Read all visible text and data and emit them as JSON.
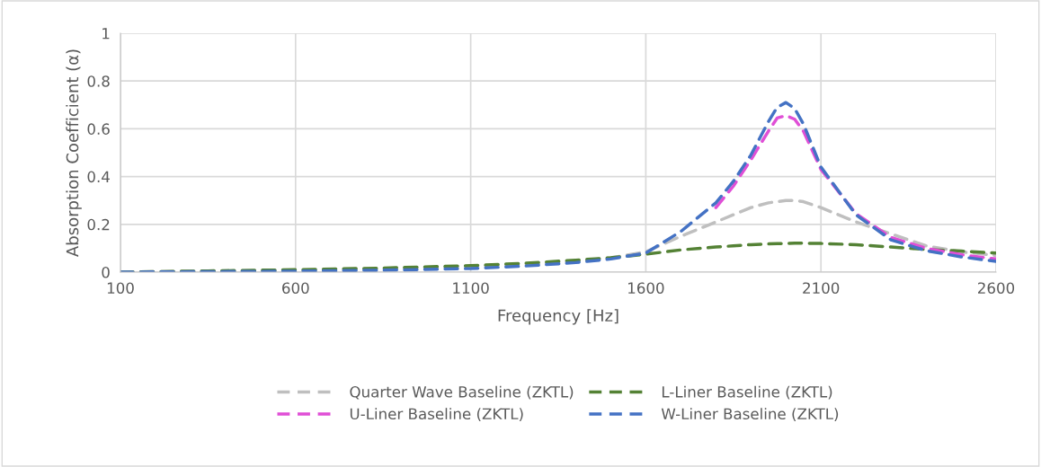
{
  "chart_data": {
    "type": "line",
    "xlabel": "Frequency [Hz]",
    "ylabel": "Absorption Coefficient (α)",
    "xlim": [
      100,
      2600
    ],
    "xticks": [
      100,
      600,
      1100,
      1600,
      2100,
      2600
    ],
    "ylim": [
      0,
      1
    ],
    "yticks": [
      0,
      0.2,
      0.4,
      0.6,
      0.8,
      1
    ],
    "grid": true,
    "legend": "bottom",
    "line_style": "dashed",
    "marker": "none",
    "x": [
      100,
      350,
      600,
      850,
      1100,
      1250,
      1400,
      1500,
      1600,
      1700,
      1800,
      1850,
      1900,
      1950,
      1975,
      2000,
      2025,
      2050,
      2100,
      2200,
      2300,
      2400,
      2500,
      2600
    ],
    "series": [
      {
        "name": "Quarter Wave Baseline (ZKTL)",
        "color": "#bfbfbf",
        "values": [
          0,
          0.004,
          0.008,
          0.015,
          0.025,
          0.034,
          0.045,
          0.06,
          0.085,
          0.15,
          0.21,
          0.24,
          0.27,
          0.29,
          0.295,
          0.3,
          0.3,
          0.295,
          0.27,
          0.21,
          0.16,
          0.11,
          0.085,
          0.07
        ]
      },
      {
        "name": "L-Liner Baseline (ZKTL)",
        "color": "#548235",
        "values": [
          0,
          0.005,
          0.01,
          0.017,
          0.027,
          0.037,
          0.05,
          0.06,
          0.075,
          0.093,
          0.105,
          0.11,
          0.115,
          0.118,
          0.119,
          0.12,
          0.121,
          0.121,
          0.12,
          0.115,
          0.105,
          0.095,
          0.088,
          0.08
        ]
      },
      {
        "name": "U-Liner Baseline (ZKTL)",
        "color": "#e04fd6",
        "values": [
          null,
          null,
          null,
          null,
          null,
          null,
          null,
          null,
          null,
          null,
          0.27,
          0.36,
          0.47,
          0.59,
          0.645,
          0.655,
          0.64,
          0.59,
          0.43,
          0.245,
          0.145,
          0.1,
          0.073,
          0.055
        ]
      },
      {
        "name": "W-Liner Baseline (ZKTL)",
        "color": "#4472c4",
        "values": [
          0,
          0.002,
          0.004,
          0.008,
          0.015,
          0.025,
          0.04,
          0.055,
          0.08,
          0.17,
          0.29,
          0.38,
          0.49,
          0.63,
          0.69,
          0.71,
          0.685,
          0.62,
          0.44,
          0.24,
          0.135,
          0.09,
          0.064,
          0.045
        ]
      }
    ]
  }
}
